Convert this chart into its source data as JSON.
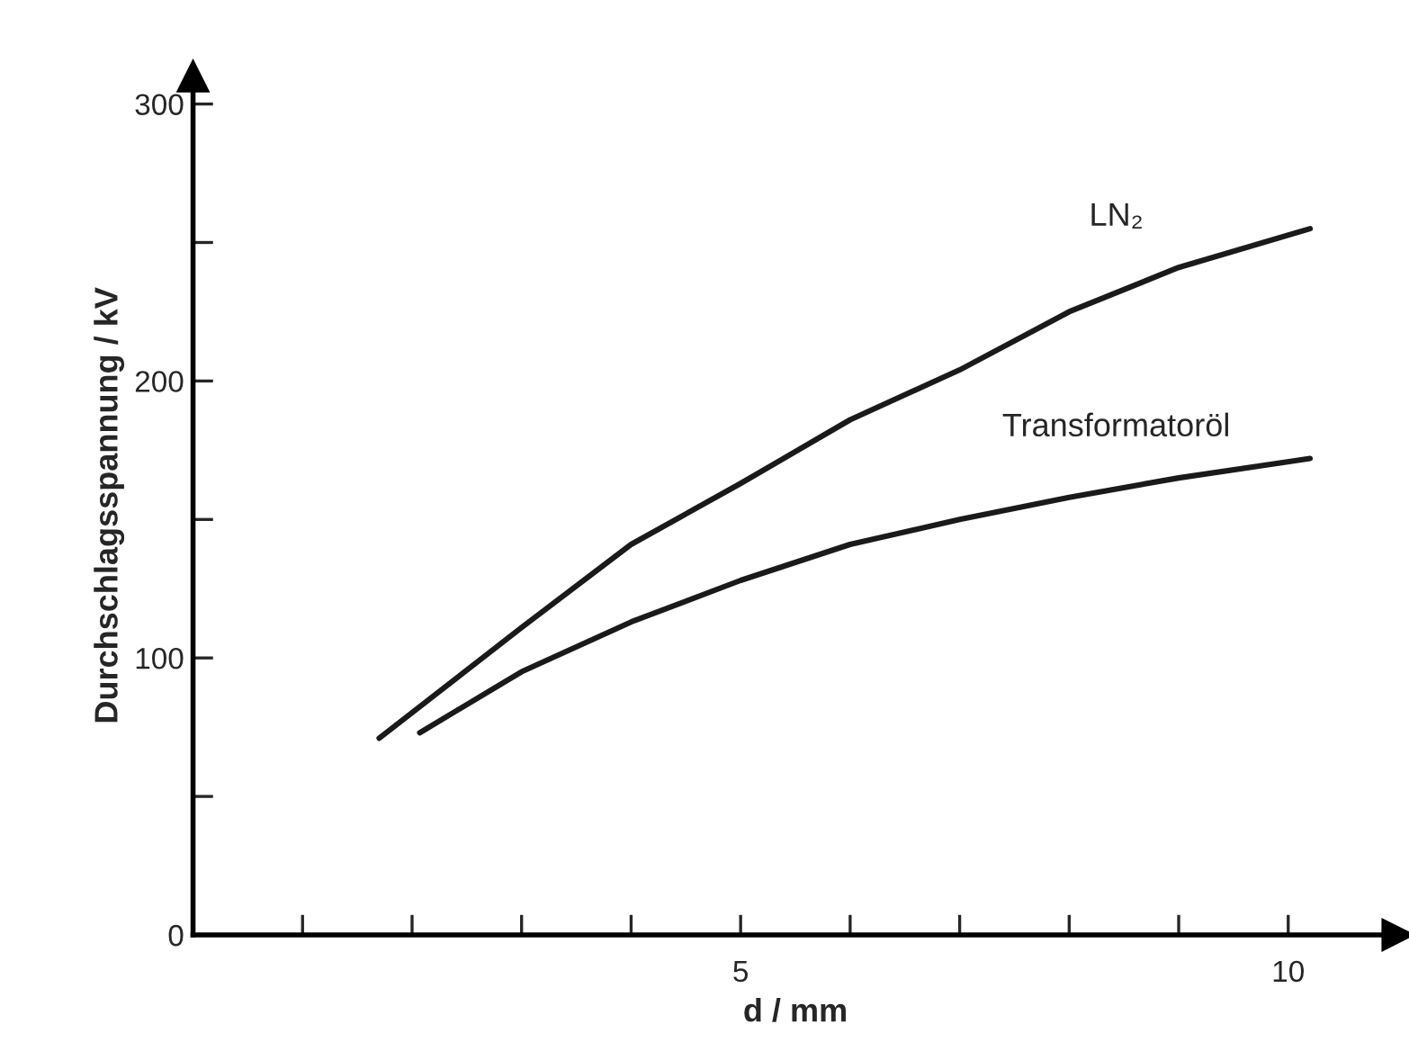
{
  "chart_data": {
    "type": "line",
    "xlabel": "d / mm",
    "ylabel": "Durchschlagsspannung / kV",
    "xlim": [
      0,
      11
    ],
    "ylim": [
      0,
      310
    ],
    "xticks": [
      {
        "value": 1,
        "label": null
      },
      {
        "value": 2,
        "label": null
      },
      {
        "value": 3,
        "label": null
      },
      {
        "value": 4,
        "label": null
      },
      5,
      {
        "value": 6,
        "label": null
      },
      {
        "value": 7,
        "label": null
      },
      {
        "value": 8,
        "label": null
      },
      {
        "value": 9,
        "label": null
      },
      10
    ],
    "yticks": [
      0,
      {
        "value": 50,
        "label": null
      },
      100,
      {
        "value": 150,
        "label": null
      },
      200,
      {
        "value": 250,
        "label": null
      },
      300
    ],
    "series": [
      {
        "name": "LN₂",
        "color": "#1a1a1a",
        "x": [
          1.7,
          3,
          4,
          5,
          6,
          7,
          8,
          9,
          10.2
        ],
        "values": [
          71,
          111,
          141,
          163,
          186,
          204,
          225,
          241,
          255
        ]
      },
      {
        "name": "Transformatoröl",
        "color": "#1a1a1a",
        "x": [
          2.07,
          3,
          4,
          5,
          6,
          7,
          8,
          9,
          10.2
        ],
        "values": [
          73,
          95,
          113,
          128,
          141,
          150,
          158,
          165,
          172
        ]
      }
    ],
    "grid": false,
    "legend": false,
    "marker": "none",
    "line_style": "solid"
  }
}
